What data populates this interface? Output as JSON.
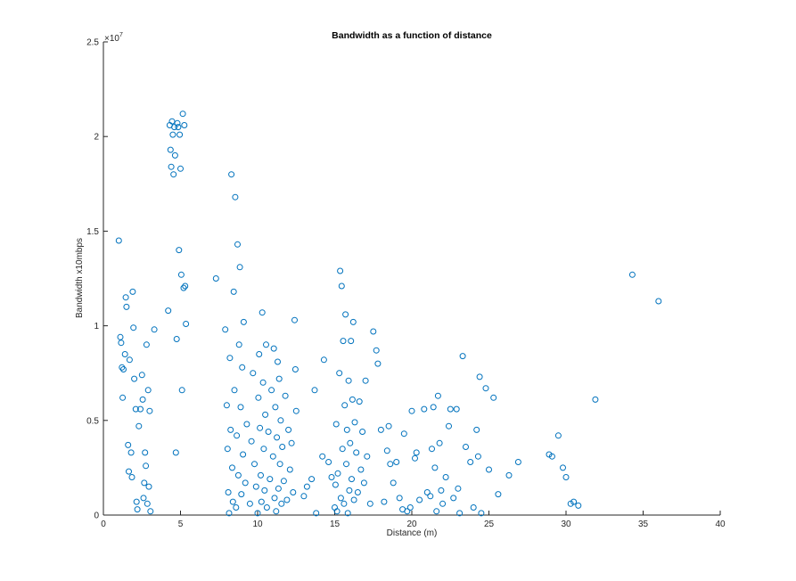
{
  "chart_data": {
    "type": "scatter",
    "title": "Bandwidth as a function of distance",
    "xlabel": "Distance (m)",
    "ylabel": "Bandwidth x10mbps",
    "xlim": [
      0,
      40
    ],
    "ylim": [
      0,
      2.5
    ],
    "y_multiplier_base": "×10",
    "y_multiplier_exponent": "7",
    "x_ticks": [
      0,
      5,
      10,
      15,
      20,
      25,
      30,
      35,
      40
    ],
    "x_tick_labels": [
      "0",
      "5",
      "10",
      "15",
      "20",
      "25",
      "30",
      "35",
      "40"
    ],
    "y_ticks": [
      0,
      0.5,
      1,
      1.5,
      2,
      2.5
    ],
    "y_tick_labels": [
      "0",
      "0.5",
      "1",
      "1.5",
      "2",
      "2.5"
    ],
    "grid": false,
    "marker": "open-circle",
    "color": "#0072bd",
    "series": [
      {
        "points": [
          [
            1.0,
            1.45
          ],
          [
            1.1,
            0.94
          ],
          [
            1.15,
            0.91
          ],
          [
            1.2,
            0.78
          ],
          [
            1.25,
            0.62
          ],
          [
            1.3,
            0.77
          ],
          [
            1.4,
            0.85
          ],
          [
            1.45,
            1.15
          ],
          [
            1.5,
            1.1
          ],
          [
            1.6,
            0.37
          ],
          [
            1.65,
            0.23
          ],
          [
            1.7,
            0.82
          ],
          [
            1.8,
            0.33
          ],
          [
            1.85,
            0.2
          ],
          [
            1.9,
            1.18
          ],
          [
            1.95,
            0.99
          ],
          [
            2.0,
            0.72
          ],
          [
            2.1,
            0.56
          ],
          [
            2.15,
            0.07
          ],
          [
            2.2,
            0.03
          ],
          [
            2.3,
            0.47
          ],
          [
            2.4,
            0.56
          ],
          [
            2.5,
            0.74
          ],
          [
            2.55,
            0.61
          ],
          [
            2.6,
            0.09
          ],
          [
            2.65,
            0.17
          ],
          [
            2.7,
            0.33
          ],
          [
            2.75,
            0.26
          ],
          [
            2.8,
            0.9
          ],
          [
            2.85,
            0.06
          ],
          [
            2.9,
            0.66
          ],
          [
            2.95,
            0.15
          ],
          [
            3.0,
            0.55
          ],
          [
            3.05,
            0.02
          ],
          [
            3.3,
            0.98
          ],
          [
            4.2,
            1.08
          ],
          [
            4.3,
            2.06
          ],
          [
            4.35,
            1.93
          ],
          [
            4.4,
            1.84
          ],
          [
            4.45,
            2.08
          ],
          [
            4.5,
            2.01
          ],
          [
            4.55,
            1.8
          ],
          [
            4.6,
            2.05
          ],
          [
            4.65,
            1.9
          ],
          [
            4.7,
            0.33
          ],
          [
            4.75,
            0.93
          ],
          [
            4.8,
            2.07
          ],
          [
            4.85,
            2.05
          ],
          [
            4.9,
            1.4
          ],
          [
            4.95,
            2.01
          ],
          [
            5.0,
            1.83
          ],
          [
            5.05,
            1.27
          ],
          [
            5.1,
            0.66
          ],
          [
            5.15,
            2.12
          ],
          [
            5.2,
            1.2
          ],
          [
            5.25,
            2.06
          ],
          [
            5.3,
            1.21
          ],
          [
            5.35,
            1.01
          ],
          [
            7.3,
            1.25
          ],
          [
            7.9,
            0.98
          ],
          [
            8.0,
            0.58
          ],
          [
            8.05,
            0.35
          ],
          [
            8.1,
            0.12
          ],
          [
            8.15,
            0.01
          ],
          [
            8.2,
            0.83
          ],
          [
            8.25,
            0.45
          ],
          [
            8.3,
            1.8
          ],
          [
            8.35,
            0.25
          ],
          [
            8.4,
            0.07
          ],
          [
            8.45,
            1.18
          ],
          [
            8.5,
            0.66
          ],
          [
            8.55,
            1.68
          ],
          [
            8.6,
            0.04
          ],
          [
            8.65,
            0.42
          ],
          [
            8.7,
            1.43
          ],
          [
            8.75,
            0.21
          ],
          [
            8.8,
            0.9
          ],
          [
            8.85,
            1.31
          ],
          [
            8.9,
            0.57
          ],
          [
            8.95,
            0.11
          ],
          [
            9.0,
            0.78
          ],
          [
            9.05,
            0.32
          ],
          [
            9.1,
            1.02
          ],
          [
            9.2,
            0.17
          ],
          [
            9.3,
            0.48
          ],
          [
            9.5,
            0.06
          ],
          [
            9.6,
            0.39
          ],
          [
            9.7,
            0.75
          ],
          [
            9.8,
            0.27
          ],
          [
            9.9,
            0.15
          ],
          [
            10.0,
            0.01
          ],
          [
            10.05,
            0.62
          ],
          [
            10.1,
            0.85
          ],
          [
            10.15,
            0.46
          ],
          [
            10.2,
            0.21
          ],
          [
            10.25,
            0.07
          ],
          [
            10.3,
            1.07
          ],
          [
            10.35,
            0.7
          ],
          [
            10.4,
            0.35
          ],
          [
            10.45,
            0.13
          ],
          [
            10.5,
            0.53
          ],
          [
            10.55,
            0.9
          ],
          [
            10.6,
            0.04
          ],
          [
            10.7,
            0.44
          ],
          [
            10.8,
            0.19
          ],
          [
            10.9,
            0.66
          ],
          [
            11.0,
            0.31
          ],
          [
            11.05,
            0.88
          ],
          [
            11.1,
            0.09
          ],
          [
            11.15,
            0.57
          ],
          [
            11.2,
            0.02
          ],
          [
            11.25,
            0.41
          ],
          [
            11.3,
            0.81
          ],
          [
            11.35,
            0.14
          ],
          [
            11.4,
            0.72
          ],
          [
            11.45,
            0.27
          ],
          [
            11.5,
            0.5
          ],
          [
            11.55,
            0.06
          ],
          [
            11.6,
            0.36
          ],
          [
            11.7,
            0.18
          ],
          [
            11.8,
            0.63
          ],
          [
            11.9,
            0.08
          ],
          [
            12.0,
            0.45
          ],
          [
            12.1,
            0.24
          ],
          [
            12.2,
            0.38
          ],
          [
            12.3,
            0.12
          ],
          [
            12.4,
            1.03
          ],
          [
            12.45,
            0.77
          ],
          [
            12.5,
            0.55
          ],
          [
            13.0,
            0.1
          ],
          [
            13.2,
            0.15
          ],
          [
            13.5,
            0.19
          ],
          [
            13.7,
            0.66
          ],
          [
            13.8,
            0.01
          ],
          [
            14.2,
            0.31
          ],
          [
            14.3,
            0.82
          ],
          [
            14.6,
            0.28
          ],
          [
            14.8,
            0.2
          ],
          [
            15.0,
            0.04
          ],
          [
            15.05,
            0.16
          ],
          [
            15.1,
            0.48
          ],
          [
            15.15,
            0.02
          ],
          [
            15.2,
            0.22
          ],
          [
            15.3,
            0.75
          ],
          [
            15.35,
            1.29
          ],
          [
            15.4,
            0.09
          ],
          [
            15.45,
            1.21
          ],
          [
            15.5,
            0.35
          ],
          [
            15.55,
            0.92
          ],
          [
            15.6,
            0.06
          ],
          [
            15.65,
            0.58
          ],
          [
            15.7,
            1.06
          ],
          [
            15.75,
            0.27
          ],
          [
            15.8,
            0.45
          ],
          [
            15.85,
            0.01
          ],
          [
            15.9,
            0.71
          ],
          [
            15.95,
            0.13
          ],
          [
            16.0,
            0.38
          ],
          [
            16.05,
            0.92
          ],
          [
            16.1,
            0.19
          ],
          [
            16.15,
            0.61
          ],
          [
            16.2,
            1.02
          ],
          [
            16.25,
            0.08
          ],
          [
            16.3,
            0.49
          ],
          [
            16.4,
            0.33
          ],
          [
            16.5,
            0.12
          ],
          [
            16.6,
            0.6
          ],
          [
            16.7,
            0.24
          ],
          [
            16.8,
            0.44
          ],
          [
            16.9,
            0.17
          ],
          [
            17.0,
            0.71
          ],
          [
            17.1,
            0.31
          ],
          [
            17.3,
            0.06
          ],
          [
            17.5,
            0.97
          ],
          [
            17.7,
            0.87
          ],
          [
            17.8,
            0.8
          ],
          [
            18.0,
            0.45
          ],
          [
            18.2,
            0.07
          ],
          [
            18.4,
            0.34
          ],
          [
            18.5,
            0.47
          ],
          [
            18.6,
            0.27
          ],
          [
            18.8,
            0.17
          ],
          [
            19.0,
            0.28
          ],
          [
            19.2,
            0.09
          ],
          [
            19.4,
            0.03
          ],
          [
            19.5,
            0.43
          ],
          [
            19.7,
            0.02
          ],
          [
            19.9,
            0.04
          ],
          [
            20.0,
            0.55
          ],
          [
            20.2,
            0.3
          ],
          [
            20.3,
            0.33
          ],
          [
            20.5,
            0.08
          ],
          [
            20.8,
            0.56
          ],
          [
            21.0,
            0.12
          ],
          [
            21.2,
            0.1
          ],
          [
            21.3,
            0.35
          ],
          [
            21.4,
            0.57
          ],
          [
            21.5,
            0.25
          ],
          [
            21.6,
            0.02
          ],
          [
            21.7,
            0.63
          ],
          [
            21.8,
            0.38
          ],
          [
            21.9,
            0.13
          ],
          [
            22.0,
            0.06
          ],
          [
            22.2,
            0.2
          ],
          [
            22.4,
            0.47
          ],
          [
            22.5,
            0.56
          ],
          [
            22.7,
            0.09
          ],
          [
            22.9,
            0.56
          ],
          [
            23.0,
            0.14
          ],
          [
            23.1,
            0.01
          ],
          [
            23.3,
            0.84
          ],
          [
            23.5,
            0.36
          ],
          [
            23.8,
            0.28
          ],
          [
            24.0,
            0.04
          ],
          [
            24.2,
            0.45
          ],
          [
            24.3,
            0.31
          ],
          [
            24.4,
            0.73
          ],
          [
            24.5,
            0.01
          ],
          [
            24.8,
            0.67
          ],
          [
            25.0,
            0.24
          ],
          [
            25.3,
            0.62
          ],
          [
            25.6,
            0.11
          ],
          [
            26.3,
            0.21
          ],
          [
            26.9,
            0.28
          ],
          [
            28.9,
            0.32
          ],
          [
            29.1,
            0.31
          ],
          [
            29.5,
            0.42
          ],
          [
            29.8,
            0.25
          ],
          [
            30.0,
            0.2
          ],
          [
            30.3,
            0.06
          ],
          [
            30.5,
            0.07
          ],
          [
            30.8,
            0.05
          ],
          [
            31.9,
            0.61
          ],
          [
            34.3,
            1.27
          ],
          [
            36.0,
            1.13
          ]
        ]
      }
    ]
  }
}
